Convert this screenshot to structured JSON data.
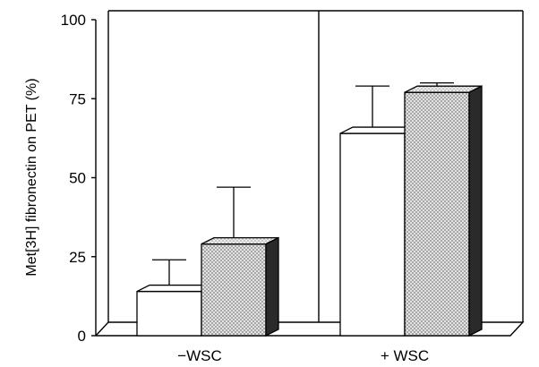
{
  "chart_data": {
    "type": "bar",
    "style": "3d-grouped-bar",
    "categories": [
      "−WSC",
      "+ WSC"
    ],
    "series": [
      {
        "values": [
          14,
          64
        ],
        "errors": [
          10,
          15
        ],
        "fill": "plain"
      },
      {
        "values": [
          29,
          77
        ],
        "errors": [
          18,
          3
        ],
        "fill": "dotted"
      }
    ],
    "ylabel": "Met[3H] fibronectin on PET (%)",
    "ylim": [
      0,
      100
    ],
    "yticks": [
      0,
      25,
      50,
      75,
      100
    ],
    "grid": false,
    "legend": "none"
  },
  "colors": {
    "plain_face": "#ffffff",
    "dotted_face": "#bdbdbd",
    "dotted_side": "#2a2a2a",
    "line": "#000000"
  }
}
